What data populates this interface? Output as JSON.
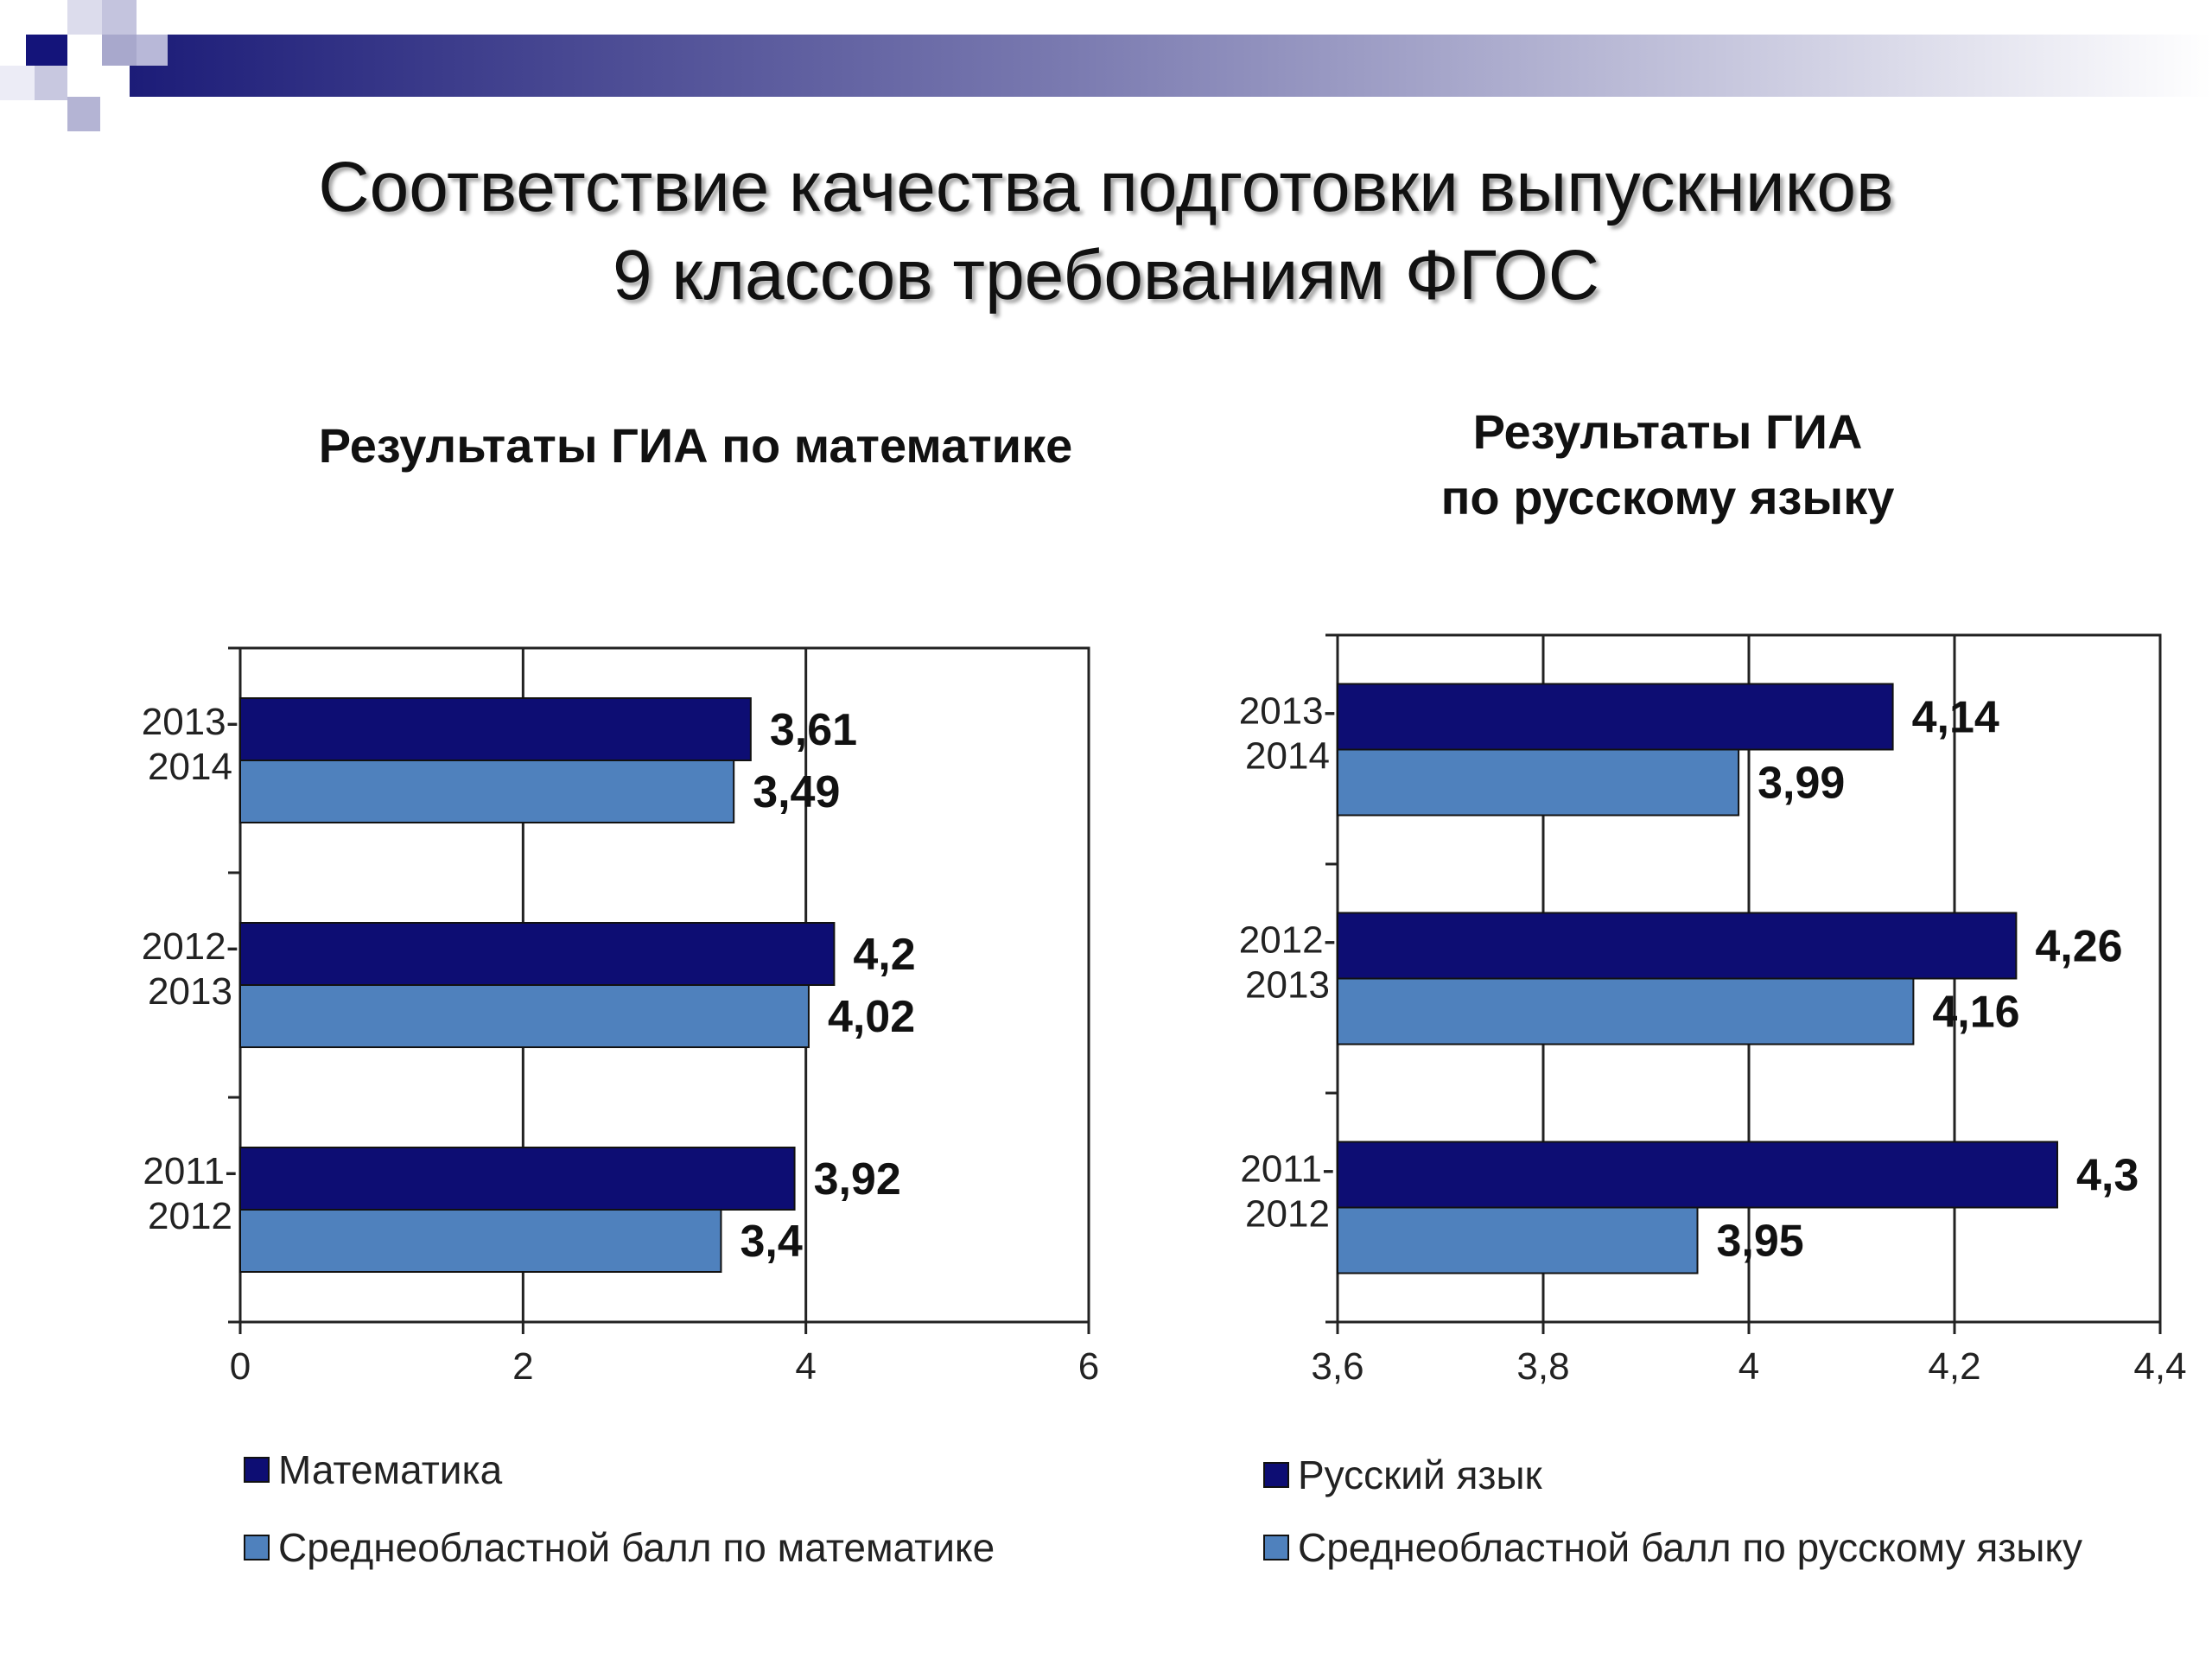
{
  "slide": {
    "title_line1": "Соответствие качества подготовки выпускников",
    "title_line2": "9 классов требованиям ФГОС"
  },
  "colors": {
    "dark": "#0d0d73",
    "light": "#4f81bd",
    "grid": "#222222"
  },
  "chart_data": [
    {
      "type": "bar",
      "orientation": "horizontal",
      "title": "Результаты ГИА по математике",
      "categories": [
        "2011-2012",
        "2012-2013",
        "2013-2014"
      ],
      "category_lines": [
        [
          "2011-",
          "2012"
        ],
        [
          "2012-",
          "2013"
        ],
        [
          "2013-",
          "2014"
        ]
      ],
      "series": [
        {
          "name": "Математика",
          "values": [
            3.92,
            4.2,
            3.61
          ],
          "labels": [
            "3,92",
            "4,2",
            "3,61"
          ]
        },
        {
          "name": "Среднеобластной балл по математике",
          "values": [
            3.4,
            4.02,
            3.49
          ],
          "labels": [
            "3,4",
            "4,02",
            "3,49"
          ]
        }
      ],
      "xlim": [
        0,
        6
      ],
      "xticks": [
        0,
        2,
        4,
        6
      ],
      "xtick_labels": [
        "0",
        "2",
        "4",
        "6"
      ],
      "grid": true,
      "legend_position": "bottom"
    },
    {
      "type": "bar",
      "orientation": "horizontal",
      "title_lines": [
        "Результаты ГИА",
        "по русскому языку"
      ],
      "categories": [
        "2011-2012",
        "2012-2013",
        "2013-2014"
      ],
      "category_lines": [
        [
          "2011-",
          "2012"
        ],
        [
          "2012-",
          "2013"
        ],
        [
          "2013-",
          "2014"
        ]
      ],
      "series": [
        {
          "name": "Русский язык",
          "values": [
            4.3,
            4.26,
            4.14
          ],
          "labels": [
            "4,3",
            "4,26",
            "4,14"
          ]
        },
        {
          "name": "Среднеобластной балл по русскому языку",
          "values": [
            3.95,
            4.16,
            3.99
          ],
          "labels": [
            "3,95",
            "4,16",
            "3,99"
          ]
        }
      ],
      "xlim": [
        3.6,
        4.4
      ],
      "xticks": [
        3.6,
        3.8,
        4.0,
        4.2,
        4.4
      ],
      "xtick_labels": [
        "3,6",
        "3,8",
        "4",
        "4,2",
        "4,4"
      ],
      "grid": true,
      "legend_position": "bottom"
    }
  ]
}
